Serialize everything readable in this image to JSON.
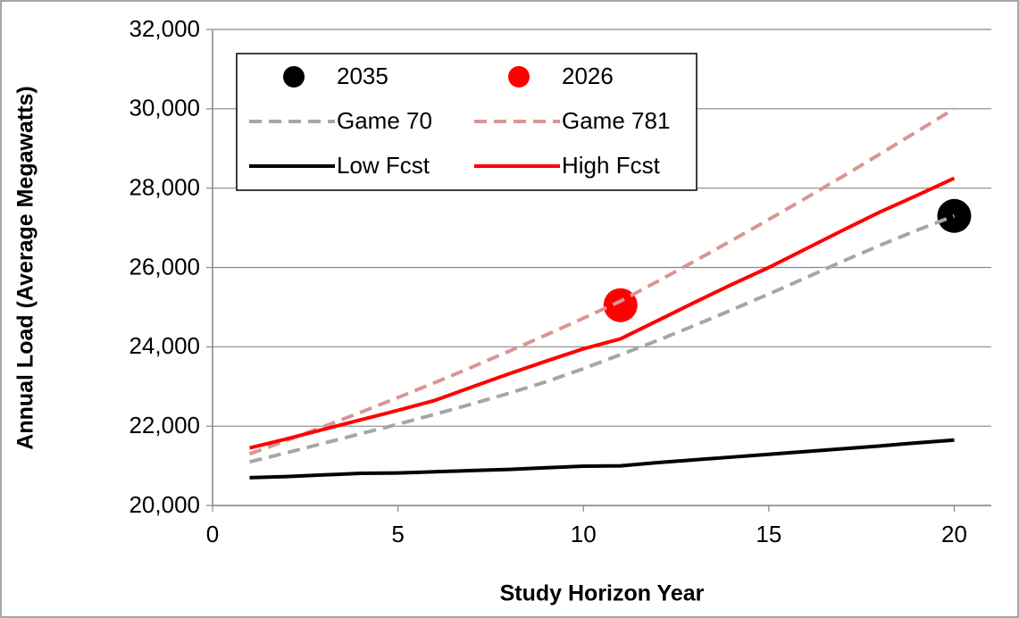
{
  "chart_data": {
    "type": "line",
    "xlabel": "Study Horizon Year",
    "ylabel": "Annual Load (Average Megawatts)",
    "x": [
      1,
      2,
      3,
      4,
      5,
      6,
      7,
      8,
      9,
      10,
      11,
      12,
      13,
      14,
      15,
      16,
      17,
      18,
      19,
      20
    ],
    "series": [
      {
        "name": "2035",
        "color": "#000000",
        "marker": true,
        "x": [
          20
        ],
        "values": [
          27300
        ]
      },
      {
        "name": "2026",
        "color": "#ff0000",
        "marker": true,
        "x": [
          11
        ],
        "values": [
          25050
        ]
      },
      {
        "name": "Game 70",
        "color": "#a6a6a6",
        "dashed": true,
        "values": [
          21100,
          21330,
          21570,
          21810,
          22050,
          22300,
          22560,
          22830,
          23120,
          23450,
          23800,
          24160,
          24540,
          24930,
          25330,
          25740,
          26160,
          26560,
          26940,
          27300
        ]
      },
      {
        "name": "Game 781",
        "color": "#d99694",
        "dashed": true,
        "values": [
          21300,
          21640,
          21990,
          22350,
          22720,
          23100,
          23490,
          23890,
          24300,
          24720,
          25150,
          25650,
          26160,
          26680,
          27210,
          27750,
          28300,
          28860,
          29430,
          30000
        ]
      },
      {
        "name": "Low Fcst",
        "color": "#000000",
        "values": [
          20700,
          20730,
          20770,
          20810,
          20820,
          20850,
          20880,
          20910,
          20950,
          20990,
          21000,
          21080,
          21150,
          21220,
          21290,
          21360,
          21430,
          21500,
          21580,
          21650
        ]
      },
      {
        "name": "High Fcst",
        "color": "#ff0000",
        "values": [
          21450,
          21680,
          21920,
          22160,
          22400,
          22650,
          22990,
          23320,
          23640,
          23950,
          24200,
          24660,
          25120,
          25570,
          26000,
          26470,
          26940,
          27400,
          27820,
          28250
        ]
      }
    ],
    "xlim": [
      0,
      21
    ],
    "xticks": [
      0,
      5,
      10,
      15,
      20
    ],
    "ylim": [
      20000,
      32000
    ],
    "yticks": [
      {
        "value": 20000,
        "label": "20,000"
      },
      {
        "value": 22000,
        "label": "22,000"
      },
      {
        "value": 24000,
        "label": "24,000"
      },
      {
        "value": 26000,
        "label": "26,000"
      },
      {
        "value": 28000,
        "label": "28,000"
      },
      {
        "value": 30000,
        "label": "30,000"
      },
      {
        "value": 32000,
        "label": "32,000"
      }
    ],
    "grid": true,
    "legend": "top-left"
  }
}
